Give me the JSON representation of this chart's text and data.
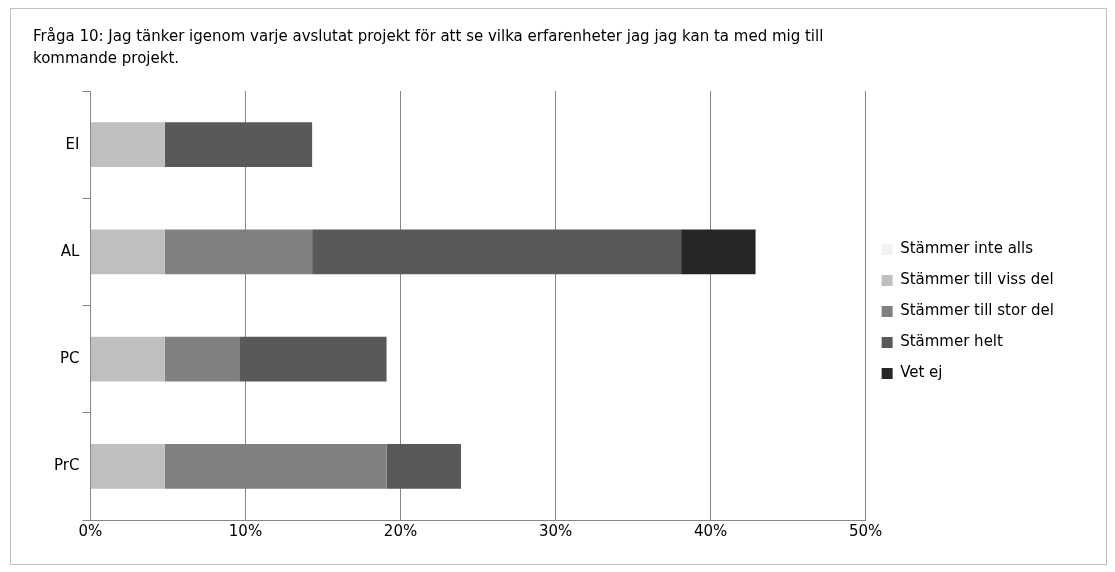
{
  "chart_data": {
    "type": "bar",
    "orientation": "horizontal",
    "stacked": true,
    "title": "Fråga  10: Jag tänker igenom varje avslutat projekt för att se vilka erfarenheter jag jag kan ta med mig till kommande projekt.",
    "categories": [
      "EI",
      "AL",
      "PC",
      "PrC"
    ],
    "series": [
      {
        "name": "Stämmer inte alls",
        "color": "#f2f2f2",
        "values": [
          0,
          0,
          0,
          0
        ]
      },
      {
        "name": "Stämmer till viss del",
        "color": "#bfbfbf",
        "values": [
          4.8,
          4.8,
          4.8,
          4.8
        ]
      },
      {
        "name": "Stämmer till stor del",
        "color": "#808080",
        "values": [
          0,
          9.5,
          4.8,
          14.3
        ]
      },
      {
        "name": "Stämmer helt",
        "color": "#595959",
        "values": [
          9.5,
          23.8,
          9.5,
          4.8
        ]
      },
      {
        "name": "Vet ej",
        "color": "#262626",
        "values": [
          0,
          4.8,
          0,
          0
        ]
      }
    ],
    "xlim": [
      0,
      50
    ],
    "xticks": [
      {
        "value": 0,
        "label": "0%"
      },
      {
        "value": 10,
        "label": "10%"
      },
      {
        "value": 20,
        "label": "20%"
      },
      {
        "value": 30,
        "label": "30%"
      },
      {
        "value": 40,
        "label": "40%"
      },
      {
        "value": 50,
        "label": "50%"
      }
    ],
    "grid": "x",
    "legend": "right"
  }
}
